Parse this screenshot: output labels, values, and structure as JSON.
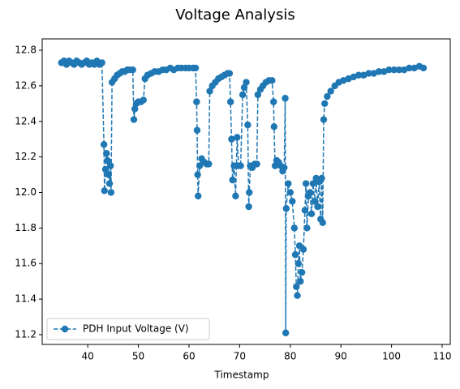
{
  "chart_data": {
    "type": "line",
    "title": "Voltage Analysis",
    "x_label": "Timestamp",
    "x": [
      34.8,
      35.3,
      35.8,
      36.3,
      36.8,
      37.3,
      37.8,
      38.3,
      38.8,
      39.3,
      39.8,
      40.3,
      40.8,
      41.3,
      41.8,
      42.3,
      42.8,
      43.2,
      43.3,
      43.5,
      43.7,
      43.9,
      44.1,
      44.3,
      44.5,
      44.6,
      44.8,
      45.3,
      45.8,
      46.3,
      46.8,
      47.3,
      47.8,
      48.3,
      48.9,
      49.1,
      49.3,
      49.6,
      50.0,
      50.5,
      51.0,
      51.3,
      51.8,
      52.5,
      53.2,
      54.0,
      54.8,
      55.5,
      56.3,
      57.0,
      57.8,
      58.5,
      59.3,
      60.0,
      60.8,
      61.3,
      61.5,
      61.6,
      61.7,
      61.8,
      62.1,
      62.5,
      63.0,
      63.5,
      63.9,
      64.1,
      64.6,
      65.2,
      65.8,
      66.4,
      67.0,
      67.6,
      68.0,
      68.2,
      68.4,
      68.6,
      68.9,
      69.2,
      69.5,
      69.8,
      70.2,
      70.6,
      70.9,
      71.3,
      71.6,
      71.8,
      71.9,
      72.1,
      72.5,
      73.0,
      73.4,
      73.6,
      74.1,
      74.6,
      75.2,
      75.8,
      76.4,
      76.7,
      76.8,
      77.0,
      77.3,
      77.7,
      78.1,
      78.5,
      78.8,
      79.0,
      79.1,
      79.2,
      79.6,
      80.0,
      80.4,
      80.8,
      81.0,
      81.2,
      81.4,
      81.6,
      81.8,
      82.0,
      82.3,
      82.6,
      82.9,
      83.1,
      83.3,
      83.6,
      83.9,
      84.2,
      84.5,
      84.8,
      85.1,
      85.4,
      85.7,
      86.0,
      86.2,
      86.4,
      86.6,
      86.8,
      87.3,
      88.0,
      88.8,
      89.6,
      90.5,
      91.5,
      92.5,
      93.5,
      94.5,
      95.5,
      96.5,
      97.5,
      98.5,
      99.5,
      100.5,
      101.5,
      102.5,
      103.5,
      104.5,
      105.5,
      106.3
    ],
    "series": [
      {
        "name": "PDH Input Voltage (V)",
        "color": "#1f77b4",
        "values": [
          12.73,
          12.74,
          12.72,
          12.74,
          12.73,
          12.72,
          12.74,
          12.73,
          12.72,
          12.73,
          12.74,
          12.72,
          12.73,
          12.72,
          12.74,
          12.72,
          12.73,
          12.27,
          12.01,
          12.13,
          12.22,
          12.18,
          12.1,
          12.05,
          12.15,
          12.0,
          12.62,
          12.64,
          12.66,
          12.67,
          12.68,
          12.68,
          12.69,
          12.69,
          12.69,
          12.41,
          12.47,
          12.5,
          12.51,
          12.51,
          12.52,
          12.64,
          12.66,
          12.67,
          12.68,
          12.68,
          12.69,
          12.69,
          12.7,
          12.69,
          12.7,
          12.7,
          12.7,
          12.7,
          12.7,
          12.7,
          12.51,
          12.35,
          12.1,
          11.98,
          12.15,
          12.19,
          12.17,
          12.16,
          12.16,
          12.57,
          12.6,
          12.62,
          12.64,
          12.65,
          12.66,
          12.67,
          12.67,
          12.51,
          12.3,
          12.07,
          12.15,
          11.98,
          12.31,
          12.15,
          12.15,
          12.55,
          12.59,
          12.62,
          12.38,
          11.92,
          12.0,
          12.15,
          12.14,
          12.16,
          12.16,
          12.55,
          12.58,
          12.6,
          12.62,
          12.63,
          12.63,
          12.51,
          12.37,
          12.15,
          12.18,
          12.17,
          12.15,
          12.12,
          12.14,
          12.53,
          11.21,
          11.91,
          12.05,
          12.0,
          11.95,
          11.8,
          11.65,
          11.47,
          11.42,
          11.6,
          11.7,
          11.5,
          11.55,
          11.68,
          11.9,
          12.05,
          11.8,
          11.98,
          12.0,
          11.88,
          12.05,
          11.95,
          12.08,
          11.92,
          12.06,
          11.85,
          12.08,
          11.83,
          12.41,
          12.5,
          12.54,
          12.57,
          12.6,
          12.62,
          12.63,
          12.64,
          12.65,
          12.66,
          12.66,
          12.67,
          12.67,
          12.68,
          12.68,
          12.69,
          12.69,
          12.69,
          12.69,
          12.7,
          12.7,
          12.71,
          12.7
        ]
      }
    ],
    "xlim": [
      31.0,
      111.6
    ],
    "ylim": [
      11.145,
      12.864
    ],
    "xticks": [
      40,
      50,
      60,
      70,
      80,
      90,
      100,
      110
    ],
    "yticks": [
      11.2,
      11.4,
      11.6,
      11.8,
      {
        "value": 12,
        "label": "12.0"
      },
      12.2,
      12.4,
      12.6,
      12.8
    ],
    "legend": "lower left",
    "grid": false
  }
}
